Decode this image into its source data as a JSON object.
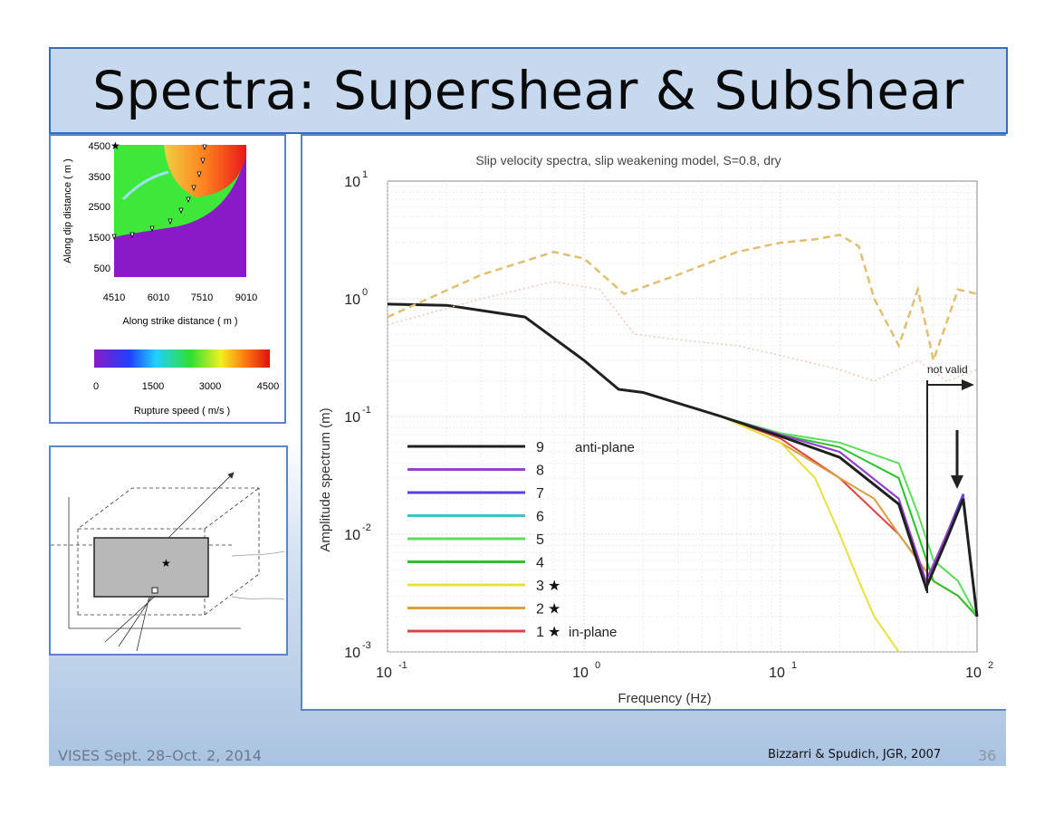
{
  "slide": {
    "title": "Spectra: Supershear & Subshear",
    "footer_left": "VISES Sept. 28–Oct. 2, 2014",
    "footer_right": "Bizzarri & Spudich, JGR, 2007",
    "page_number": "36"
  },
  "map": {
    "ylabel": "Along dip distance ( m )",
    "xlabel": "Along strike distance ( m )",
    "yticks": [
      "4500",
      "3500",
      "2500",
      "1500",
      "500"
    ],
    "xticks": [
      "4510",
      "6010",
      "7510",
      "9010"
    ],
    "colorbar_label": "Rupture speed ( m/s )",
    "colorbar_ticks": [
      "0",
      "1500",
      "3000",
      "4500"
    ]
  },
  "chart_data": {
    "type": "line",
    "title": "Slip velocity spectra, slip weakening model, S=0.8, dry",
    "xlabel": "Frequency (Hz)",
    "ylabel": "Amplitude spectrum (m)",
    "xscale": "log",
    "yscale": "log",
    "xlim": [
      0.1,
      100
    ],
    "ylim": [
      0.001,
      10
    ],
    "x_ticks": [
      {
        "base": "10",
        "exp": "-1"
      },
      {
        "base": "10",
        "exp": "0"
      },
      {
        "base": "10",
        "exp": "1"
      },
      {
        "base": "10",
        "exp": "2"
      }
    ],
    "y_ticks": [
      {
        "base": "10",
        "exp": "1"
      },
      {
        "base": "10",
        "exp": "0"
      },
      {
        "base": "10",
        "exp": "-1"
      },
      {
        "base": "10",
        "exp": "-2"
      },
      {
        "base": "10",
        "exp": "-3"
      }
    ],
    "grid": true,
    "annotation": "not valid",
    "legend": [
      {
        "num": "9",
        "star": false,
        "note": "anti-plane",
        "color": "#202020"
      },
      {
        "num": "8",
        "star": false,
        "note": "",
        "color": "#9a3fd0"
      },
      {
        "num": "7",
        "star": false,
        "note": "",
        "color": "#5a3fd8"
      },
      {
        "num": "6",
        "star": false,
        "note": "",
        "color": "#40c0c8"
      },
      {
        "num": "5",
        "star": false,
        "note": "",
        "color": "#5cdc5c"
      },
      {
        "num": "4",
        "star": false,
        "note": "",
        "color": "#2ec02e"
      },
      {
        "num": "3",
        "star": true,
        "note": "",
        "color": "#e8e040"
      },
      {
        "num": "2",
        "star": true,
        "note": "",
        "color": "#d8a040"
      },
      {
        "num": "1",
        "star": true,
        "note": "in-plane",
        "color": "#e04040"
      }
    ],
    "series": [
      {
        "name": "1",
        "color": "#e04040",
        "x": [
          0.1,
          0.2,
          0.5,
          1,
          1.5,
          2,
          5,
          10,
          20,
          40,
          50,
          60,
          80,
          100
        ],
        "y": [
          0.9,
          0.88,
          0.7,
          0.3,
          0.17,
          0.16,
          0.1,
          0.065,
          0.03,
          0.01,
          0.006,
          0.004,
          0.003,
          0.002
        ]
      },
      {
        "name": "2",
        "color": "#d8a040",
        "x": [
          0.1,
          0.2,
          0.5,
          1,
          1.5,
          2,
          5,
          10,
          20,
          30,
          40,
          60,
          80,
          100
        ],
        "y": [
          0.9,
          0.88,
          0.7,
          0.3,
          0.17,
          0.16,
          0.1,
          0.06,
          0.03,
          0.02,
          0.01,
          0.004,
          0.003,
          0.002
        ]
      },
      {
        "name": "3",
        "color": "#e8e040",
        "x": [
          0.1,
          0.2,
          0.5,
          1,
          1.5,
          2,
          5,
          10,
          15,
          20,
          25,
          30,
          40
        ],
        "y": [
          0.9,
          0.88,
          0.7,
          0.3,
          0.17,
          0.16,
          0.1,
          0.06,
          0.03,
          0.01,
          0.004,
          0.002,
          0.001
        ]
      },
      {
        "name": "4",
        "color": "#2ec02e",
        "x": [
          0.1,
          0.2,
          0.5,
          1,
          1.5,
          2,
          5,
          10,
          20,
          40,
          50,
          60,
          80,
          100
        ],
        "y": [
          0.9,
          0.88,
          0.7,
          0.3,
          0.17,
          0.16,
          0.1,
          0.07,
          0.055,
          0.03,
          0.01,
          0.004,
          0.003,
          0.002
        ]
      },
      {
        "name": "5",
        "color": "#5cdc5c",
        "x": [
          0.1,
          0.2,
          0.5,
          1,
          1.5,
          2,
          5,
          10,
          20,
          40,
          50,
          60,
          80,
          100
        ],
        "y": [
          0.9,
          0.88,
          0.7,
          0.3,
          0.17,
          0.16,
          0.1,
          0.072,
          0.06,
          0.04,
          0.015,
          0.006,
          0.004,
          0.002
        ]
      },
      {
        "name": "6",
        "color": "#40c0c8",
        "x": [
          0.1,
          0.2,
          0.5,
          1,
          1.5,
          2,
          5,
          10,
          20,
          40,
          55,
          70,
          85,
          100
        ],
        "y": [
          0.9,
          0.88,
          0.7,
          0.3,
          0.17,
          0.16,
          0.1,
          0.07,
          0.05,
          0.02,
          0.004,
          0.01,
          0.02,
          0.002
        ]
      },
      {
        "name": "7",
        "color": "#5a3fd8",
        "x": [
          0.1,
          0.2,
          0.5,
          1,
          1.5,
          2,
          5,
          10,
          20,
          40,
          55,
          70,
          85,
          100
        ],
        "y": [
          0.9,
          0.88,
          0.7,
          0.3,
          0.17,
          0.16,
          0.1,
          0.07,
          0.05,
          0.02,
          0.0035,
          0.01,
          0.022,
          0.002
        ]
      },
      {
        "name": "8",
        "color": "#9a3fd0",
        "x": [
          0.1,
          0.2,
          0.5,
          1,
          1.5,
          2,
          5,
          10,
          20,
          40,
          55,
          70,
          85,
          100
        ],
        "y": [
          0.9,
          0.88,
          0.7,
          0.3,
          0.17,
          0.16,
          0.1,
          0.07,
          0.05,
          0.02,
          0.004,
          0.01,
          0.02,
          0.002
        ]
      },
      {
        "name": "9",
        "color": "#202020",
        "x": [
          0.1,
          0.2,
          0.5,
          1,
          1.5,
          2,
          5,
          10,
          20,
          40,
          55,
          70,
          85,
          100
        ],
        "y": [
          0.9,
          0.88,
          0.7,
          0.3,
          0.17,
          0.16,
          0.1,
          0.068,
          0.045,
          0.018,
          0.0035,
          0.009,
          0.02,
          0.002
        ]
      },
      {
        "name": "supershear-dashed",
        "color": "#e0c070",
        "x": [
          0.1,
          0.3,
          0.7,
          1.0,
          1.6,
          3,
          6,
          10,
          15,
          20,
          25,
          30,
          40,
          50,
          60,
          80,
          100
        ],
        "y": [
          0.7,
          1.6,
          2.5,
          2.2,
          1.1,
          1.6,
          2.5,
          3.0,
          3.2,
          3.5,
          2.8,
          1.0,
          0.4,
          1.2,
          0.3,
          1.2,
          1.1
        ]
      },
      {
        "name": "supershear-dotted",
        "color": "#f0c8b8",
        "x": [
          0.1,
          0.3,
          0.7,
          1.2,
          1.8,
          3,
          6,
          10,
          20,
          30,
          50,
          70,
          100
        ],
        "y": [
          0.6,
          1.0,
          1.4,
          1.2,
          0.5,
          0.45,
          0.4,
          0.33,
          0.25,
          0.2,
          0.3,
          0.2,
          0.25
        ]
      }
    ]
  }
}
